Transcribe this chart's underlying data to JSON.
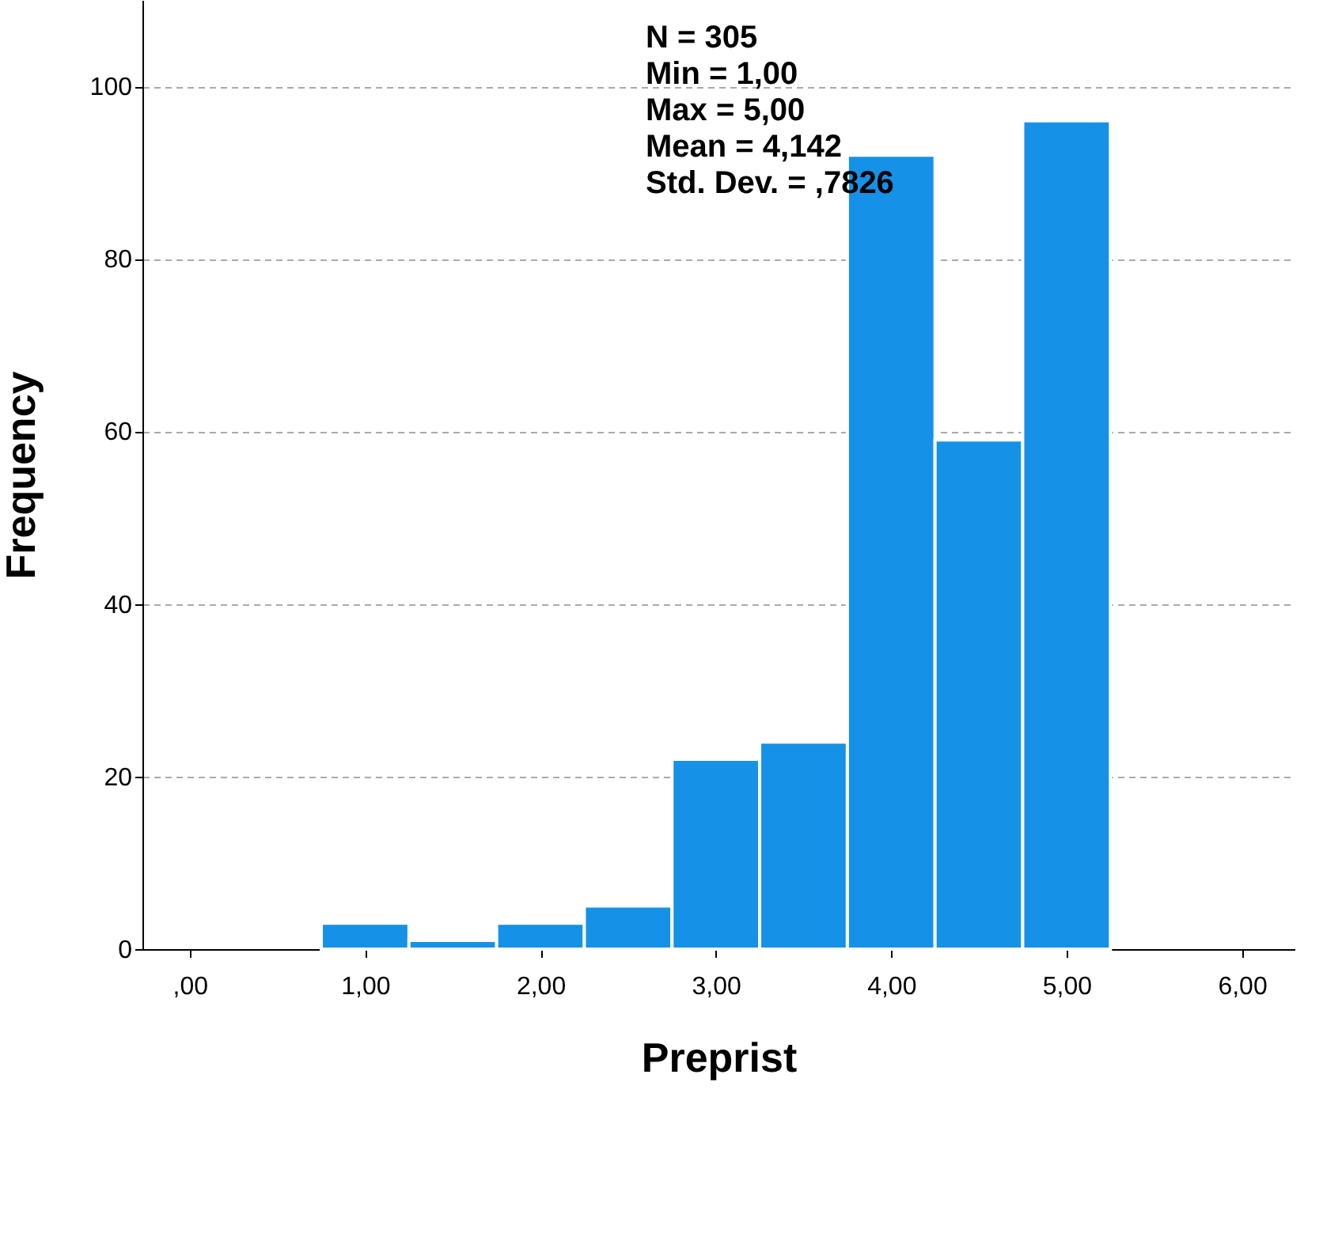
{
  "chart_data": {
    "type": "histogram",
    "xlabel": "Preprist",
    "ylabel": "Frequency",
    "bins": [
      0.75,
      1.25,
      1.75,
      2.25,
      2.75,
      3.25,
      3.75,
      4.25,
      4.75,
      5.25
    ],
    "values": [
      3,
      1,
      3,
      5,
      22,
      24,
      92,
      59,
      96
    ],
    "color": "#1591e8",
    "xlim": [
      -0.27,
      6.3
    ],
    "xticks": [
      {
        "value": 0,
        "label": ",00"
      },
      {
        "value": 1,
        "label": "1,00"
      },
      {
        "value": 2,
        "label": "2,00"
      },
      {
        "value": 3,
        "label": "3,00"
      },
      {
        "value": 4,
        "label": "4,00"
      },
      {
        "value": 5,
        "label": "5,00"
      },
      {
        "value": 6,
        "label": "6,00"
      }
    ],
    "ylim": [
      0,
      110
    ],
    "yticks": [
      0,
      20,
      40,
      60,
      80,
      100
    ],
    "grid": "y",
    "annotations": [
      "N = 305",
      "Min = 1,00",
      "Max = 5,00",
      "Mean = 4,142",
      "Std. Dev. = ,7826"
    ]
  }
}
